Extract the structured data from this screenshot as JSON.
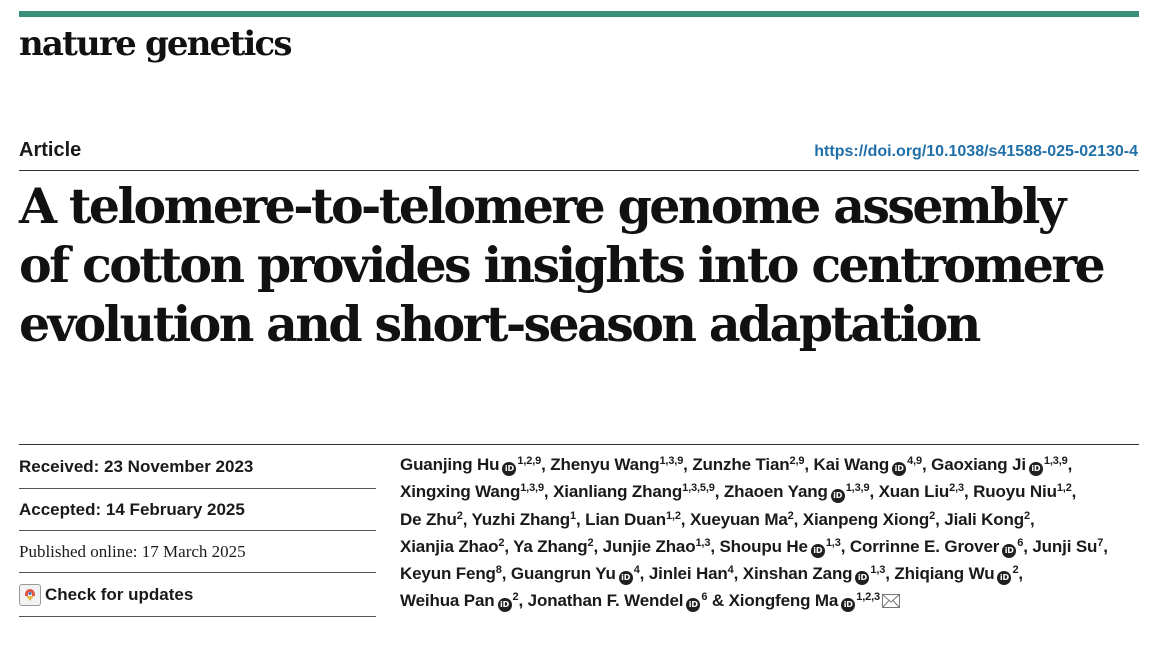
{
  "journal": {
    "name": "nature genetics"
  },
  "article": {
    "type": "Article",
    "doi": "https://doi.org/10.1038/s41588-025-02130-4",
    "title_lines": [
      "A telomere-to-telomere genome assembly",
      "of cotton provides insights into centromere",
      "evolution and short-season adaptation"
    ]
  },
  "dates": {
    "received_label": "Received: ",
    "received": "23 November 2023",
    "accepted_label": "Accepted: ",
    "accepted": "14 February 2025",
    "published_label": "Published online: ",
    "published": "17 March 2025",
    "updates_label": "Check for updates"
  },
  "authors": [
    {
      "name": "Guanjing Hu",
      "orcid": true,
      "aff": "1,2,9"
    },
    {
      "name": "Zhenyu Wang",
      "orcid": false,
      "aff": "1,3,9"
    },
    {
      "name": "Zunzhe Tian",
      "orcid": false,
      "aff": "2,9"
    },
    {
      "name": "Kai Wang",
      "orcid": true,
      "aff": "4,9"
    },
    {
      "name": "Gaoxiang Ji",
      "orcid": true,
      "aff": "1,3,9"
    },
    {
      "name": "Xingxing Wang",
      "orcid": false,
      "aff": "1,3,9"
    },
    {
      "name": "Xianliang Zhang",
      "orcid": false,
      "aff": "1,3,5,9"
    },
    {
      "name": "Zhaoen Yang",
      "orcid": true,
      "aff": "1,3,9"
    },
    {
      "name": "Xuan Liu",
      "orcid": false,
      "aff": "2,3"
    },
    {
      "name": "Ruoyu Niu",
      "orcid": false,
      "aff": "1,2"
    },
    {
      "name": "De Zhu",
      "orcid": false,
      "aff": "2"
    },
    {
      "name": "Yuzhi Zhang",
      "orcid": false,
      "aff": "1"
    },
    {
      "name": "Lian Duan",
      "orcid": false,
      "aff": "1,2"
    },
    {
      "name": "Xueyuan Ma",
      "orcid": false,
      "aff": "2"
    },
    {
      "name": "Xianpeng Xiong",
      "orcid": false,
      "aff": "2"
    },
    {
      "name": "Jiali Kong",
      "orcid": false,
      "aff": "2"
    },
    {
      "name": "Xianjia Zhao",
      "orcid": false,
      "aff": "2"
    },
    {
      "name": "Ya Zhang",
      "orcid": false,
      "aff": "2"
    },
    {
      "name": "Junjie Zhao",
      "orcid": false,
      "aff": "1,3"
    },
    {
      "name": "Shoupu He",
      "orcid": true,
      "aff": "1,3"
    },
    {
      "name": "Corrinne E. Grover",
      "orcid": true,
      "aff": "6"
    },
    {
      "name": "Junji Su",
      "orcid": false,
      "aff": "7"
    },
    {
      "name": "Keyun Feng",
      "orcid": false,
      "aff": "8"
    },
    {
      "name": "Guangrun Yu",
      "orcid": true,
      "aff": "4"
    },
    {
      "name": "Jinlei Han",
      "orcid": false,
      "aff": "4"
    },
    {
      "name": "Xinshan Zang",
      "orcid": true,
      "aff": "1,3"
    },
    {
      "name": "Zhiqiang Wu",
      "orcid": true,
      "aff": "2"
    },
    {
      "name": "Weihua Pan",
      "orcid": true,
      "aff": "2"
    },
    {
      "name": "Jonathan F. Wendel",
      "orcid": true,
      "aff": "6"
    },
    {
      "name": "Xiongfeng Ma",
      "orcid": true,
      "aff": "1,2,3",
      "corresponding": true
    }
  ],
  "orcid_glyph": "iD",
  "author_separator": ", ",
  "last_separator": " & ",
  "icons": {
    "orcid": "orcid-icon",
    "mail": "envelope-icon",
    "updates": "check-for-updates-icon"
  },
  "colors": {
    "accent_bar": "#3a8f7a",
    "doi_link": "#1f6fa8"
  }
}
